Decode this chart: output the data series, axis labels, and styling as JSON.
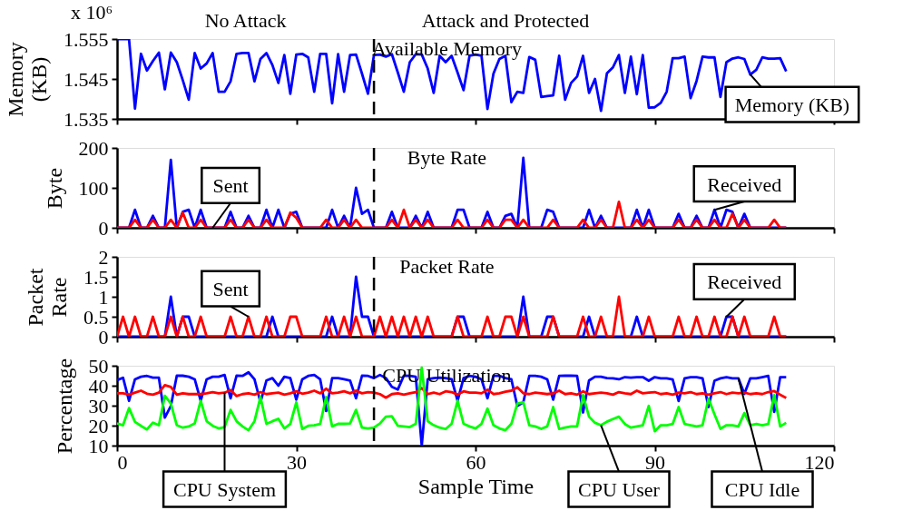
{
  "chart_data": [
    {
      "type": "line",
      "title": "Available Memory",
      "ylabel": "Memory (KB)",
      "annotations": [
        "No Attack",
        "Attack and Protected",
        "x 10⁶"
      ],
      "tick_labels": "y",
      "x": [
        0,
        1,
        2,
        3,
        4,
        5,
        6,
        7,
        8,
        9,
        10,
        11,
        12,
        13,
        14,
        15,
        16,
        17,
        18,
        19,
        20,
        21,
        22,
        23,
        24,
        25,
        26,
        27,
        28,
        29,
        30,
        31,
        32,
        33,
        34,
        35,
        36,
        37,
        38,
        39,
        40,
        41,
        42,
        43,
        44,
        45,
        46,
        47,
        48,
        49,
        50,
        51,
        52,
        53,
        54,
        55,
        56,
        57,
        58,
        59,
        60,
        61,
        62,
        63,
        64,
        65,
        66,
        67,
        68,
        69,
        70,
        71,
        72,
        73,
        74,
        75,
        76,
        77,
        78,
        79,
        80,
        81,
        82,
        83,
        84,
        85,
        86,
        87,
        88,
        89,
        90,
        91,
        92,
        93,
        94,
        95,
        96,
        97,
        98,
        99,
        100,
        101,
        102,
        103,
        104,
        105,
        106,
        107,
        108,
        109,
        110,
        111,
        112
      ],
      "xlim": [
        0,
        120
      ],
      "xticks": [
        0,
        30,
        60,
        90,
        120
      ],
      "ylim": [
        1.535,
        1.555
      ],
      "yticks": [
        1.535,
        1.545,
        1.555
      ],
      "ref_lines": [
        {
          "axis": "x",
          "value": 43,
          "line_style": "dashed"
        }
      ],
      "series": [
        {
          "name": "Memory (KB)",
          "color": "#0000ff",
          "values": [
            1.555,
            1.555,
            1.555,
            1.5376,
            1.5513,
            1.5471,
            1.5495,
            1.5516,
            1.5424,
            1.5516,
            1.5492,
            1.5447,
            1.5398,
            1.5515,
            1.5476,
            1.5489,
            1.5515,
            1.5418,
            1.5418,
            1.5444,
            1.5513,
            1.5515,
            1.5515,
            1.5444,
            1.55,
            1.5515,
            1.5485,
            1.544,
            1.551,
            1.5413,
            1.5511,
            1.5513,
            1.5504,
            1.5418,
            1.5513,
            1.5513,
            1.5389,
            1.5512,
            1.5418,
            1.551,
            1.5511,
            1.5463,
            1.5413,
            1.551,
            1.5511,
            1.5506,
            1.5512,
            1.5466,
            1.5418,
            1.5492,
            1.5512,
            1.5511,
            1.5476,
            1.5415,
            1.5508,
            1.5492,
            1.5508,
            1.5466,
            1.5422,
            1.5508,
            1.5511,
            1.5508,
            1.5375,
            1.5463,
            1.55,
            1.5508,
            1.5392,
            1.5418,
            1.5415,
            1.5505,
            1.5498,
            1.5405,
            1.5407,
            1.5409,
            1.5508,
            1.5398,
            1.544,
            1.5456,
            1.5508,
            1.5415,
            1.545,
            1.537,
            1.5464,
            1.5479,
            1.551,
            1.5415,
            1.5506,
            1.5412,
            1.551,
            1.5378,
            1.5379,
            1.539,
            1.5418,
            1.5502,
            1.5502,
            1.5506,
            1.5402,
            1.5445,
            1.5506,
            1.5504,
            1.5504,
            1.5405,
            1.5492,
            1.5501,
            1.5504,
            1.55,
            1.5461,
            1.5473,
            1.5504,
            1.5501,
            1.5501,
            1.5502,
            1.5469
          ]
        }
      ]
    },
    {
      "type": "line",
      "title": "Byte Rate",
      "ylabel": "Byte",
      "tick_labels": "y",
      "x": [
        0,
        1,
        2,
        3,
        4,
        5,
        6,
        7,
        8,
        9,
        10,
        11,
        12,
        13,
        14,
        15,
        16,
        17,
        18,
        19,
        20,
        21,
        22,
        23,
        24,
        25,
        26,
        27,
        28,
        29,
        30,
        31,
        32,
        33,
        34,
        35,
        36,
        37,
        38,
        39,
        40,
        41,
        42,
        43,
        44,
        45,
        46,
        47,
        48,
        49,
        50,
        51,
        52,
        53,
        54,
        55,
        56,
        57,
        58,
        59,
        60,
        61,
        62,
        63,
        64,
        65,
        66,
        67,
        68,
        69,
        70,
        71,
        72,
        73,
        74,
        75,
        76,
        77,
        78,
        79,
        80,
        81,
        82,
        83,
        84,
        85,
        86,
        87,
        88,
        89,
        90,
        91,
        92,
        93,
        94,
        95,
        96,
        97,
        98,
        99,
        100,
        101,
        102,
        103,
        104,
        105,
        106,
        107,
        108,
        109,
        110,
        111,
        112
      ],
      "xlim": [
        0,
        120
      ],
      "xticks": [
        0,
        30,
        60,
        90,
        120
      ],
      "ylim": [
        0,
        200
      ],
      "yticks": [
        0,
        100,
        200
      ],
      "ref_lines": [
        {
          "axis": "x",
          "value": 43,
          "line_style": "dashed"
        }
      ],
      "series": [
        {
          "name": "Received",
          "color": "#0000ff",
          "values": [
            0,
            0,
            0,
            45,
            0,
            0,
            30,
            0,
            0,
            170,
            0,
            40,
            45,
            0,
            45,
            0,
            0,
            0,
            0,
            40,
            0,
            0,
            30,
            0,
            0,
            45,
            0,
            45,
            0,
            35,
            40,
            0,
            0,
            0,
            0,
            0,
            45,
            0,
            30,
            0,
            100,
            35,
            45,
            0,
            0,
            0,
            40,
            0,
            0,
            0,
            30,
            0,
            40,
            0,
            0,
            0,
            0,
            45,
            45,
            0,
            0,
            0,
            40,
            0,
            0,
            30,
            35,
            0,
            175,
            0,
            0,
            0,
            45,
            40,
            0,
            0,
            0,
            0,
            0,
            45,
            0,
            30,
            0,
            0,
            0,
            0,
            0,
            45,
            0,
            45,
            0,
            0,
            0,
            0,
            35,
            0,
            0,
            30,
            0,
            0,
            45,
            0,
            45,
            40,
            0,
            35,
            0,
            0,
            0,
            0,
            0,
            0,
            0
          ]
        },
        {
          "name": "Sent",
          "color": "#ff0000",
          "values": [
            0,
            0,
            0,
            20,
            0,
            0,
            20,
            0,
            0,
            20,
            0,
            38,
            0,
            0,
            20,
            0,
            0,
            0,
            0,
            20,
            0,
            0,
            20,
            0,
            0,
            20,
            0,
            0,
            0,
            38,
            25,
            0,
            0,
            0,
            0,
            20,
            0,
            0,
            20,
            0,
            20,
            0,
            0,
            0,
            0,
            0,
            20,
            0,
            45,
            0,
            20,
            0,
            20,
            0,
            0,
            0,
            0,
            20,
            0,
            0,
            0,
            0,
            20,
            0,
            0,
            20,
            20,
            0,
            20,
            0,
            0,
            0,
            0,
            20,
            0,
            0,
            0,
            0,
            20,
            0,
            0,
            20,
            0,
            0,
            65,
            0,
            0,
            20,
            0,
            20,
            0,
            0,
            0,
            0,
            20,
            0,
            0,
            20,
            0,
            0,
            20,
            0,
            0,
            35,
            0,
            20,
            0,
            0,
            0,
            0,
            20,
            0,
            0
          ]
        }
      ]
    },
    {
      "type": "line",
      "title": "Packet Rate",
      "ylabel": "Packet Rate",
      "tick_labels": "y",
      "x": [
        0,
        1,
        2,
        3,
        4,
        5,
        6,
        7,
        8,
        9,
        10,
        11,
        12,
        13,
        14,
        15,
        16,
        17,
        18,
        19,
        20,
        21,
        22,
        23,
        24,
        25,
        26,
        27,
        28,
        29,
        30,
        31,
        32,
        33,
        34,
        35,
        36,
        37,
        38,
        39,
        40,
        41,
        42,
        43,
        44,
        45,
        46,
        47,
        48,
        49,
        50,
        51,
        52,
        53,
        54,
        55,
        56,
        57,
        58,
        59,
        60,
        61,
        62,
        63,
        64,
        65,
        66,
        67,
        68,
        69,
        70,
        71,
        72,
        73,
        74,
        75,
        76,
        77,
        78,
        79,
        80,
        81,
        82,
        83,
        84,
        85,
        86,
        87,
        88,
        89,
        90,
        91,
        92,
        93,
        94,
        95,
        96,
        97,
        98,
        99,
        100,
        101,
        102,
        103,
        104,
        105,
        106,
        107,
        108,
        109,
        110,
        111,
        112
      ],
      "xlim": [
        0,
        120
      ],
      "xticks": [
        0,
        30,
        60,
        90,
        120
      ],
      "ylim": [
        0,
        2
      ],
      "yticks": [
        0,
        0.5,
        1,
        1.5,
        2
      ],
      "ref_lines": [
        {
          "axis": "x",
          "value": 43,
          "line_style": "dashed"
        }
      ],
      "series": [
        {
          "name": "Received",
          "color": "#0000ff",
          "values": [
            0,
            0,
            0,
            0,
            0,
            0,
            0,
            0,
            0,
            1,
            0,
            0.5,
            0.5,
            0,
            0,
            0,
            0,
            0,
            0,
            0,
            0,
            0,
            0,
            0,
            0,
            0,
            0.5,
            0,
            0,
            0,
            0,
            0,
            0,
            0,
            0,
            0,
            0.5,
            0,
            0,
            0,
            1.5,
            0.5,
            0.5,
            0,
            0,
            0,
            0,
            0,
            0,
            0,
            0,
            0,
            0,
            0,
            0,
            0,
            0,
            0.5,
            0.5,
            0,
            0,
            0,
            0,
            0,
            0,
            0,
            0,
            0,
            1,
            0,
            0,
            0,
            0.5,
            0.5,
            0,
            0,
            0,
            0,
            0,
            0.5,
            0,
            0,
            0,
            0,
            0,
            0,
            0,
            0.5,
            0,
            0,
            0,
            0,
            0,
            0,
            0,
            0,
            0,
            0,
            0,
            0,
            0,
            0,
            0.5,
            0.5,
            0,
            0,
            0,
            0,
            0,
            0,
            0,
            0,
            0
          ]
        },
        {
          "name": "Sent",
          "color": "#ff0000",
          "values": [
            0,
            0.5,
            0,
            0.5,
            0,
            0,
            0.5,
            0,
            0,
            0.5,
            0,
            0.5,
            0,
            0,
            0.5,
            0,
            0,
            0,
            0,
            0.5,
            0,
            0,
            0.5,
            0,
            0,
            0.5,
            0,
            0,
            0,
            0.5,
            0.5,
            0,
            0,
            0,
            0,
            0.5,
            0,
            0,
            0.5,
            0,
            0.5,
            0,
            0,
            0,
            0.5,
            0,
            0.5,
            0,
            0.5,
            0,
            0.5,
            0,
            0.5,
            0,
            0,
            0,
            0,
            0.5,
            0,
            0,
            0,
            0,
            0.5,
            0,
            0,
            0.5,
            0.5,
            0,
            0.5,
            0,
            0,
            0,
            0,
            0.5,
            0,
            0,
            0,
            0,
            0.5,
            0,
            0,
            0.5,
            0,
            0,
            1,
            0,
            0,
            0,
            0,
            0.5,
            0,
            0,
            0,
            0,
            0.5,
            0,
            0,
            0.5,
            0,
            0,
            0.5,
            0,
            0,
            0.5,
            0,
            0.5,
            0,
            0,
            0,
            0,
            0.5,
            0,
            0
          ]
        }
      ]
    },
    {
      "type": "line",
      "title": "CPU Utilization",
      "ylabel": "Percentage",
      "xlabel": "Sample Time",
      "x": [
        0,
        1,
        2,
        3,
        4,
        5,
        6,
        7,
        8,
        9,
        10,
        11,
        12,
        13,
        14,
        15,
        16,
        17,
        18,
        19,
        20,
        21,
        22,
        23,
        24,
        25,
        26,
        27,
        28,
        29,
        30,
        31,
        32,
        33,
        34,
        35,
        36,
        37,
        38,
        39,
        40,
        41,
        42,
        43,
        44,
        45,
        46,
        47,
        48,
        49,
        50,
        51,
        52,
        53,
        54,
        55,
        56,
        57,
        58,
        59,
        60,
        61,
        62,
        63,
        64,
        65,
        66,
        67,
        68,
        69,
        70,
        71,
        72,
        73,
        74,
        75,
        76,
        77,
        78,
        79,
        80,
        81,
        82,
        83,
        84,
        85,
        86,
        87,
        88,
        89,
        90,
        91,
        92,
        93,
        94,
        95,
        96,
        97,
        98,
        99,
        100,
        101,
        102,
        103,
        104,
        105,
        106,
        107,
        108,
        109,
        110,
        111,
        112
      ],
      "xlim": [
        0,
        120
      ],
      "xticks": [
        0,
        30,
        60,
        90,
        120
      ],
      "ylim": [
        10,
        50
      ],
      "yticks": [
        10,
        20,
        30,
        40,
        50
      ],
      "ref_lines": [
        {
          "axis": "x",
          "value": 43,
          "line_style": "dashed"
        }
      ],
      "series": [
        {
          "name": "CPU Idle",
          "color": "#0000ff",
          "values": [
            42.8,
            44,
            32.4,
            43.2,
            44.5,
            44.9,
            44,
            44,
            24,
            29.8,
            45,
            45,
            44.5,
            43.2,
            32.4,
            43.2,
            44.5,
            44.5,
            45.4,
            33.7,
            45,
            44.9,
            46.7,
            43.2,
            31.7,
            42.6,
            43.8,
            40,
            44.5,
            43.8,
            33,
            43.2,
            44.9,
            45.4,
            43.2,
            27.3,
            43.8,
            43.8,
            43.2,
            42.6,
            33.7,
            45,
            44.9,
            43.8,
            45.4,
            43.8,
            39.4,
            38.1,
            45,
            44.9,
            44.5,
            10,
            43.2,
            43.8,
            44,
            43.8,
            43.2,
            32.4,
            43.8,
            44.9,
            44.5,
            43.2,
            33.7,
            44.9,
            45,
            43.8,
            43.2,
            29.8,
            31.7,
            44.9,
            44.9,
            44.5,
            43.2,
            33,
            44.9,
            45,
            45,
            44.9,
            26.6,
            42.6,
            44.5,
            44.5,
            43.8,
            43.7,
            43.2,
            44.3,
            44,
            44.3,
            44.3,
            42.5,
            44.3,
            43.7,
            43.7,
            43.1,
            32.3,
            43.7,
            44.3,
            44.3,
            43.7,
            29.3,
            42.5,
            43.7,
            44.3,
            43.7,
            43.7,
            35.9,
            43.7,
            43.7,
            44.3,
            44.9,
            26.9,
            44.3,
            44.3
          ]
        },
        {
          "name": "CPU System",
          "color": "#ff0000",
          "values": [
            36.2,
            36.2,
            35.5,
            36.5,
            37.5,
            36,
            35.5,
            36.5,
            40.3,
            39.4,
            35.5,
            36.2,
            35.8,
            35.8,
            35.8,
            36.2,
            36.8,
            36.2,
            36.5,
            37.8,
            34.8,
            35.8,
            36.2,
            35.5,
            36.8,
            35.8,
            36.2,
            36.5,
            35.5,
            36.2,
            37.2,
            36,
            36.5,
            37.5,
            36.2,
            38.5,
            36.2,
            36.5,
            37.2,
            36.2,
            37.5,
            36.2,
            36.8,
            36.5,
            35.8,
            34,
            35.8,
            36.2,
            35.5,
            36.2,
            36.8,
            38.8,
            35.8,
            36.5,
            35.8,
            37.2,
            36.8,
            35.5,
            37.2,
            36.5,
            36.5,
            36.2,
            38,
            35.8,
            36.2,
            37,
            37.5,
            39.2,
            36.2,
            35.8,
            36.5,
            36.2,
            35.8,
            36.2,
            37.5,
            35.8,
            36.2,
            35.5,
            37.2,
            35.8,
            36.2,
            36.5,
            36.2,
            35.5,
            36.8,
            36.2,
            35.8,
            37.5,
            36.2,
            36.5,
            36.8,
            35.8,
            36.2,
            35.5,
            36.5,
            36.2,
            36.8,
            35.8,
            36.2,
            35.5,
            36.2,
            36.8,
            35.8,
            36.5,
            36.2,
            36.5,
            35.8,
            36.2,
            35.8,
            36.8,
            37.3,
            35.5,
            33.9
          ]
        },
        {
          "name": "CPU User",
          "color": "#00ff00",
          "values": [
            21.1,
            20.2,
            28.8,
            21.9,
            19.9,
            18.1,
            21.5,
            20.2,
            34.9,
            31.1,
            20.2,
            19,
            19.6,
            21.1,
            32.4,
            22.2,
            19.9,
            18.6,
            19.3,
            27.9,
            22.2,
            19.6,
            17.7,
            22.2,
            34.3,
            20.9,
            22.2,
            23.4,
            18.6,
            20.9,
            31.7,
            18.3,
            19.9,
            20.2,
            20.9,
            34.3,
            19.6,
            20.9,
            20.9,
            21.1,
            27.9,
            19,
            18.6,
            19,
            21.1,
            24.5,
            24.7,
            19.9,
            19.6,
            19.3,
            20.9,
            49,
            22.2,
            20.2,
            19,
            18.3,
            20.9,
            32.4,
            20.9,
            19.6,
            18.6,
            20.9,
            28.5,
            20.2,
            18.6,
            17.7,
            20.9,
            31.1,
            31.7,
            20.2,
            19.6,
            18.4,
            19.6,
            29.3,
            18.4,
            19,
            19.6,
            19.6,
            35.3,
            24.5,
            21.4,
            20.2,
            22,
            23.3,
            24.5,
            20.8,
            19,
            19.6,
            20.2,
            29.9,
            17.2,
            20.2,
            20.2,
            20.8,
            29.3,
            20.8,
            20.2,
            19.6,
            20.2,
            33.5,
            25.7,
            18.4,
            20.2,
            20.2,
            19.6,
            26.3,
            20.2,
            20.8,
            20.2,
            20.8,
            35.3,
            19.6,
            21.4
          ]
        }
      ]
    }
  ]
}
